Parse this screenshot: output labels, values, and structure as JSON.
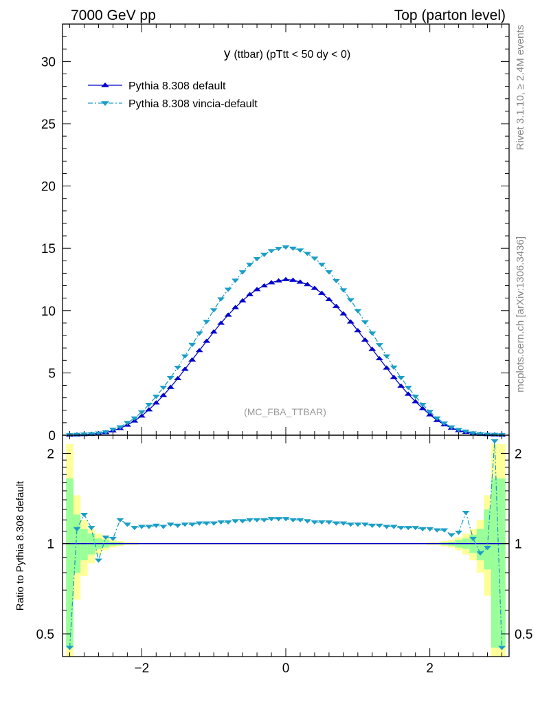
{
  "header": {
    "energy_label": "7000 GeV pp",
    "process_label": "Top (parton level)"
  },
  "side": {
    "rivet_label": "Rivet 3.1.10, ≥ 2.4M events",
    "mcplots_label": "mcplots.cern.ch [arXiv:1306.3436]"
  },
  "chart_data": {
    "type": "line",
    "title": "y (ttbar) (pTtt < 50 dy < 0)",
    "title_main": "y",
    "title_rest": "(ttbar) (pTtt < 50 dy < 0)",
    "watermark": "(MC_FBA_TTBAR)",
    "ratio_ylabel": "Ratio to Pythia 8.308 default",
    "xlim": [
      -3.1,
      3.1
    ],
    "ylim": [
      0,
      33
    ],
    "ratio_ylim": [
      0.42,
      2.3
    ],
    "x_ticks": [
      -2,
      0,
      2
    ],
    "x_tick_labels": [
      "−2",
      "0",
      "2"
    ],
    "y_ticks": [
      0,
      5,
      10,
      15,
      20,
      25,
      30
    ],
    "y_tick_labels": [
      "0",
      "5",
      "10",
      "15",
      "20",
      "25",
      "30"
    ],
    "ratio_ticks": [
      0.5,
      1,
      2
    ],
    "ratio_tick_labels": [
      "0.5",
      "1",
      "2"
    ],
    "x": [
      -3.0,
      -2.9,
      -2.8,
      -2.7,
      -2.6,
      -2.5,
      -2.4,
      -2.3,
      -2.2,
      -2.1,
      -2.0,
      -1.9,
      -1.8,
      -1.7,
      -1.6,
      -1.5,
      -1.4,
      -1.3,
      -1.2,
      -1.1,
      -1.0,
      -0.9,
      -0.8,
      -0.7,
      -0.6,
      -0.5,
      -0.4,
      -0.3,
      -0.2,
      -0.1,
      0.0,
      0.1,
      0.2,
      0.3,
      0.4,
      0.5,
      0.6,
      0.7,
      0.8,
      0.9,
      1.0,
      1.1,
      1.2,
      1.3,
      1.4,
      1.5,
      1.6,
      1.7,
      1.8,
      1.9,
      2.0,
      2.1,
      2.2,
      2.3,
      2.4,
      2.5,
      2.6,
      2.7,
      2.8,
      2.9,
      3.0
    ],
    "series": [
      {
        "name": "Pythia 8.308 default",
        "color": "#0000cc",
        "marker": "triangle-up",
        "linestyle": "solid",
        "values": [
          0.02,
          0.04,
          0.06,
          0.09,
          0.14,
          0.22,
          0.36,
          0.55,
          0.82,
          1.15,
          1.55,
          2.05,
          2.6,
          3.2,
          3.85,
          4.55,
          5.3,
          6.05,
          6.8,
          7.55,
          8.3,
          9.0,
          9.65,
          10.25,
          10.8,
          11.3,
          11.7,
          12.0,
          12.25,
          12.4,
          12.5,
          12.45,
          12.3,
          12.1,
          11.8,
          11.4,
          10.9,
          10.35,
          9.75,
          9.1,
          8.4,
          7.65,
          6.9,
          6.15,
          5.4,
          4.65,
          3.95,
          3.3,
          2.7,
          2.15,
          1.65,
          1.2,
          0.85,
          0.58,
          0.38,
          0.24,
          0.15,
          0.09,
          0.06,
          0.04,
          0.02
        ],
        "ratio": [
          1.0,
          1.0,
          1.0,
          1.0,
          1.0,
          1.0,
          1.0,
          1.0,
          1.0,
          1.0,
          1.0,
          1.0,
          1.0,
          1.0,
          1.0,
          1.0,
          1.0,
          1.0,
          1.0,
          1.0,
          1.0,
          1.0,
          1.0,
          1.0,
          1.0,
          1.0,
          1.0,
          1.0,
          1.0,
          1.0,
          1.0,
          1.0,
          1.0,
          1.0,
          1.0,
          1.0,
          1.0,
          1.0,
          1.0,
          1.0,
          1.0,
          1.0,
          1.0,
          1.0,
          1.0,
          1.0,
          1.0,
          1.0,
          1.0,
          1.0,
          1.0,
          1.0,
          1.0,
          1.0,
          1.0,
          1.0,
          1.0,
          1.0,
          1.0,
          1.0,
          1.0
        ]
      },
      {
        "name": "Pythia 8.308 vincia-default",
        "color": "#1a9ec6",
        "marker": "triangle-down",
        "linestyle": "dashdot",
        "values": [
          0.02,
          0.05,
          0.07,
          0.1,
          0.16,
          0.26,
          0.47,
          0.66,
          1.0,
          1.37,
          1.86,
          2.46,
          3.11,
          3.83,
          4.61,
          5.44,
          6.35,
          7.27,
          8.18,
          9.12,
          10.05,
          10.93,
          11.7,
          12.43,
          13.1,
          13.7,
          14.16,
          14.5,
          14.8,
          14.98,
          15.1,
          15.0,
          14.85,
          14.58,
          14.2,
          13.7,
          13.1,
          12.4,
          11.65,
          10.85,
          9.98,
          9.08,
          8.18,
          7.25,
          6.35,
          5.45,
          4.61,
          3.83,
          3.11,
          2.46,
          1.89,
          1.37,
          0.96,
          0.65,
          0.44,
          0.31,
          0.17,
          0.1,
          0.06,
          0.05,
          0.02
        ],
        "ratio": [
          0.45,
          1.12,
          1.25,
          1.13,
          0.88,
          1.05,
          1.04,
          1.2,
          1.16,
          1.13,
          1.14,
          1.14,
          1.15,
          1.14,
          1.16,
          1.15,
          1.16,
          1.16,
          1.17,
          1.17,
          1.17,
          1.18,
          1.18,
          1.19,
          1.19,
          1.2,
          1.2,
          1.2,
          1.21,
          1.21,
          1.21,
          1.2,
          1.2,
          1.19,
          1.18,
          1.18,
          1.18,
          1.17,
          1.17,
          1.16,
          1.16,
          1.16,
          1.15,
          1.15,
          1.14,
          1.14,
          1.13,
          1.13,
          1.13,
          1.12,
          1.12,
          1.11,
          1.11,
          1.07,
          1.09,
          1.27,
          1.04,
          0.93,
          0.97,
          2.2,
          0.45
        ]
      }
    ],
    "band_yellow": [
      [
        0.42,
        2.15
      ],
      [
        0.65,
        1.45
      ],
      [
        0.78,
        1.2
      ],
      [
        0.86,
        1.12
      ],
      [
        0.92,
        1.08
      ],
      [
        0.95,
        1.05
      ],
      [
        0.97,
        1.03
      ],
      [
        0.98,
        1.02
      ],
      [
        0.99,
        1.01
      ],
      [
        0.99,
        1.01
      ],
      [
        0.995,
        1.005
      ],
      [
        0.995,
        1.005
      ],
      [
        0.995,
        1.005
      ],
      [
        0.995,
        1.005
      ],
      [
        0.995,
        1.005
      ],
      [
        0.995,
        1.005
      ],
      [
        0.995,
        1.005
      ],
      [
        0.995,
        1.005
      ],
      [
        0.995,
        1.005
      ],
      [
        0.995,
        1.005
      ],
      [
        0.995,
        1.005
      ],
      [
        0.995,
        1.005
      ],
      [
        0.995,
        1.005
      ],
      [
        0.995,
        1.005
      ],
      [
        0.995,
        1.005
      ],
      [
        0.995,
        1.005
      ],
      [
        0.995,
        1.005
      ],
      [
        0.995,
        1.005
      ],
      [
        0.995,
        1.005
      ],
      [
        0.995,
        1.005
      ],
      [
        0.995,
        1.005
      ],
      [
        0.995,
        1.005
      ],
      [
        0.995,
        1.005
      ],
      [
        0.995,
        1.005
      ],
      [
        0.995,
        1.005
      ],
      [
        0.995,
        1.005
      ],
      [
        0.995,
        1.005
      ],
      [
        0.995,
        1.005
      ],
      [
        0.995,
        1.005
      ],
      [
        0.995,
        1.005
      ],
      [
        0.995,
        1.005
      ],
      [
        0.995,
        1.005
      ],
      [
        0.995,
        1.005
      ],
      [
        0.995,
        1.005
      ],
      [
        0.995,
        1.005
      ],
      [
        0.995,
        1.005
      ],
      [
        0.995,
        1.005
      ],
      [
        0.995,
        1.005
      ],
      [
        0.995,
        1.005
      ],
      [
        0.995,
        1.005
      ],
      [
        0.99,
        1.01
      ],
      [
        0.99,
        1.01
      ],
      [
        0.98,
        1.02
      ],
      [
        0.97,
        1.03
      ],
      [
        0.95,
        1.05
      ],
      [
        0.92,
        1.08
      ],
      [
        0.88,
        1.12
      ],
      [
        0.8,
        1.2
      ],
      [
        0.67,
        1.45
      ],
      [
        0.42,
        2.15
      ],
      [
        0.42,
        2.15
      ]
    ],
    "band_green": [
      [
        0.45,
        1.65
      ],
      [
        0.8,
        1.25
      ],
      [
        0.88,
        1.12
      ],
      [
        0.92,
        1.08
      ],
      [
        0.96,
        1.04
      ],
      [
        0.97,
        1.03
      ],
      [
        0.985,
        1.015
      ],
      [
        0.99,
        1.01
      ],
      [
        0.995,
        1.005
      ],
      [
        0.995,
        1.005
      ],
      [
        0.998,
        1.002
      ],
      [
        0.998,
        1.002
      ],
      [
        0.998,
        1.002
      ],
      [
        0.998,
        1.002
      ],
      [
        0.998,
        1.002
      ],
      [
        0.998,
        1.002
      ],
      [
        0.998,
        1.002
      ],
      [
        0.998,
        1.002
      ],
      [
        0.998,
        1.002
      ],
      [
        0.998,
        1.002
      ],
      [
        0.998,
        1.002
      ],
      [
        0.998,
        1.002
      ],
      [
        0.998,
        1.002
      ],
      [
        0.998,
        1.002
      ],
      [
        0.998,
        1.002
      ],
      [
        0.998,
        1.002
      ],
      [
        0.998,
        1.002
      ],
      [
        0.998,
        1.002
      ],
      [
        0.998,
        1.002
      ],
      [
        0.998,
        1.002
      ],
      [
        0.998,
        1.002
      ],
      [
        0.998,
        1.002
      ],
      [
        0.998,
        1.002
      ],
      [
        0.998,
        1.002
      ],
      [
        0.998,
        1.002
      ],
      [
        0.998,
        1.002
      ],
      [
        0.998,
        1.002
      ],
      [
        0.998,
        1.002
      ],
      [
        0.998,
        1.002
      ],
      [
        0.998,
        1.002
      ],
      [
        0.998,
        1.002
      ],
      [
        0.998,
        1.002
      ],
      [
        0.998,
        1.002
      ],
      [
        0.998,
        1.002
      ],
      [
        0.998,
        1.002
      ],
      [
        0.998,
        1.002
      ],
      [
        0.998,
        1.002
      ],
      [
        0.998,
        1.002
      ],
      [
        0.998,
        1.002
      ],
      [
        0.998,
        1.002
      ],
      [
        0.995,
        1.005
      ],
      [
        0.995,
        1.005
      ],
      [
        0.99,
        1.01
      ],
      [
        0.985,
        1.015
      ],
      [
        0.97,
        1.03
      ],
      [
        0.96,
        1.04
      ],
      [
        0.93,
        1.07
      ],
      [
        0.88,
        1.12
      ],
      [
        0.82,
        1.3
      ],
      [
        0.45,
        1.65
      ],
      [
        0.45,
        1.65
      ]
    ]
  }
}
